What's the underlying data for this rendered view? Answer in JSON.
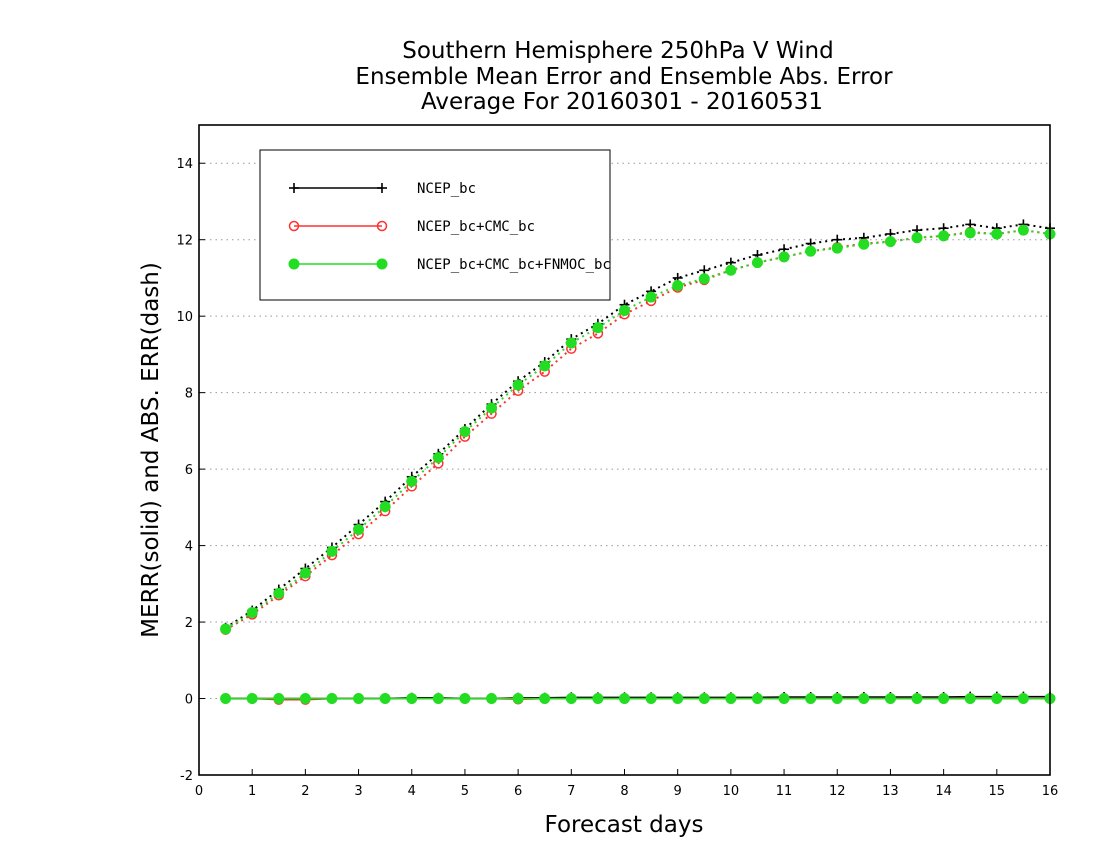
{
  "chart_data": {
    "type": "line",
    "title_lines": [
      "Southern Hemisphere 250hPa V Wind",
      "Ensemble Mean Error and Ensemble Abs. Error",
      "Average For 20160301 - 20160531"
    ],
    "xlabel": "Forecast days",
    "ylabel": "MERR(solid) and ABS. ERR(dash)",
    "xlim": [
      0,
      16
    ],
    "ylim": [
      -2,
      15
    ],
    "xticks": [
      "0",
      "1",
      "2",
      "3",
      "4",
      "5",
      "6",
      "7",
      "8",
      "9",
      "10",
      "11",
      "12",
      "13",
      "14",
      "15",
      "16"
    ],
    "yticks": [
      "-2",
      "0",
      "2",
      "4",
      "6",
      "8",
      "10",
      "12",
      "14"
    ],
    "grid": "horizontal dotted",
    "legend_position": "top-left",
    "x": [
      0.5,
      1,
      1.5,
      2,
      2.5,
      3,
      3.5,
      4,
      4.5,
      5,
      5.5,
      6,
      6.5,
      7,
      7.5,
      8,
      8.5,
      9,
      9.5,
      10,
      10.5,
      11,
      11.5,
      12,
      12.5,
      13,
      13.5,
      14,
      14.5,
      15,
      15.5,
      16
    ],
    "series": [
      {
        "name": "NCEP_bc",
        "color": "#000000",
        "marker": "plus",
        "mean_error": [
          0,
          0,
          0,
          0,
          0,
          0,
          0,
          0.02,
          0.02,
          0,
          0,
          0.02,
          0.02,
          0.03,
          0.03,
          0.03,
          0.03,
          0.03,
          0.03,
          0.03,
          0.03,
          0.04,
          0.04,
          0.04,
          0.04,
          0.04,
          0.04,
          0.04,
          0.05,
          0.05,
          0.05,
          0.05
        ],
        "abs_error": [
          1.85,
          2.3,
          2.85,
          3.4,
          3.95,
          4.55,
          5.15,
          5.8,
          6.4,
          7.05,
          7.7,
          8.3,
          8.8,
          9.4,
          9.8,
          10.3,
          10.65,
          11.0,
          11.2,
          11.4,
          11.6,
          11.75,
          11.9,
          12.0,
          12.05,
          12.15,
          12.25,
          12.3,
          12.4,
          12.3,
          12.4,
          12.3
        ]
      },
      {
        "name": "NCEP_bc+CMC_bc",
        "color": "#ff3030",
        "marker": "open-circle",
        "mean_error": [
          0,
          0,
          -0.03,
          -0.03,
          0,
          0,
          0,
          0,
          0,
          0,
          0,
          -0.02,
          0,
          0,
          0,
          0,
          0,
          0,
          0,
          0,
          0,
          0,
          0,
          0,
          0,
          0,
          0,
          0,
          0,
          0,
          0,
          0
        ],
        "abs_error": [
          1.8,
          2.2,
          2.7,
          3.2,
          3.75,
          4.3,
          4.9,
          5.55,
          6.15,
          6.85,
          7.45,
          8.05,
          8.55,
          9.15,
          9.55,
          10.05,
          10.4,
          10.75,
          10.95,
          11.2,
          11.4,
          11.55,
          11.7,
          11.8,
          11.9,
          11.95,
          12.05,
          12.1,
          12.2,
          12.15,
          12.25,
          12.15
        ]
      },
      {
        "name": "NCEP_bc+CMC_bc+FNMOC_bc",
        "color": "#22dd22",
        "marker": "filled-circle",
        "mean_error": [
          0,
          0,
          0,
          0,
          0,
          0,
          0,
          0,
          0,
          0,
          0,
          0,
          0,
          0,
          0,
          0,
          0,
          0,
          0,
          0,
          0,
          0,
          0,
          0,
          0,
          0,
          0,
          0,
          0,
          0,
          0,
          0
        ],
        "abs_error": [
          1.82,
          2.25,
          2.75,
          3.28,
          3.85,
          4.42,
          5.02,
          5.68,
          6.3,
          6.98,
          7.6,
          8.2,
          8.7,
          9.3,
          9.7,
          10.15,
          10.5,
          10.8,
          10.98,
          11.2,
          11.4,
          11.55,
          11.7,
          11.78,
          11.88,
          11.95,
          12.05,
          12.1,
          12.18,
          12.15,
          12.25,
          12.15
        ]
      }
    ]
  }
}
